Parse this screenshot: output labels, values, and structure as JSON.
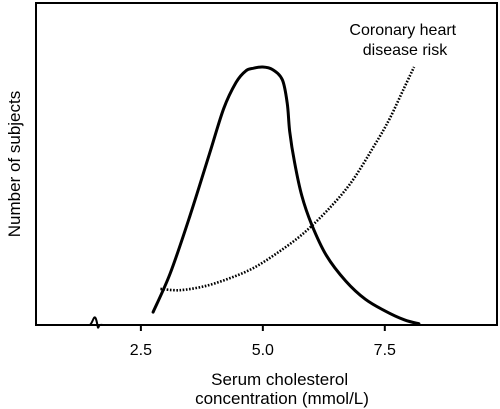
{
  "chart_data": {
    "type": "line",
    "xlabel": [
      "Serum cholesterol",
      "concentration (mmol/L)"
    ],
    "ylabel": "Number of subjects",
    "xlim": [
      0.35,
      9.8
    ],
    "x_axis_break": 1.55,
    "xticks": [
      2.5,
      5.0,
      7.5
    ],
    "xtick_labels": [
      "2.5",
      "5.0",
      "7.5"
    ],
    "ylim": [
      0,
      1
    ],
    "grid": false,
    "series": [
      {
        "name": "Number of subjects",
        "style": "solid",
        "color": "#000000",
        "x": [
          2.75,
          3.1,
          3.5,
          3.9,
          4.2,
          4.45,
          4.65,
          4.8,
          5.0,
          5.2,
          5.4,
          5.5,
          5.55,
          5.65,
          5.8,
          6.0,
          6.3,
          6.7,
          7.1,
          7.5,
          7.9,
          8.2
        ],
        "y": [
          0.05,
          0.2,
          0.42,
          0.66,
          0.84,
          0.94,
          0.985,
          0.995,
          1.0,
          0.99,
          0.95,
          0.86,
          0.75,
          0.63,
          0.5,
          0.39,
          0.27,
          0.17,
          0.1,
          0.055,
          0.02,
          0.005
        ]
      },
      {
        "name": "Coronary heart disease risk",
        "style": "dotted",
        "color": "#000000",
        "x": [
          2.9,
          3.3,
          3.8,
          4.3,
          4.8,
          5.3,
          5.8,
          6.3,
          6.8,
          7.3,
          7.6,
          7.9,
          8.1
        ],
        "y": [
          0.14,
          0.135,
          0.15,
          0.18,
          0.22,
          0.28,
          0.35,
          0.44,
          0.55,
          0.7,
          0.8,
          0.92,
          1.0
        ]
      }
    ],
    "annotations": [
      {
        "lines": [
          "Coronary heart",
          "disease risk"
        ],
        "target_series": "Coronary heart disease risk"
      }
    ]
  }
}
